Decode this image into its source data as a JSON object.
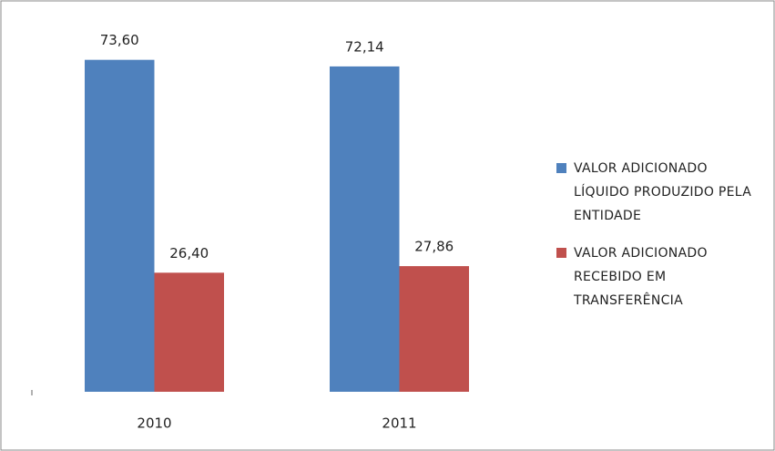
{
  "chart_data": {
    "type": "bar",
    "categories": [
      "2010",
      "2011"
    ],
    "series": [
      {
        "name": "VALOR ADICIONADO LÍQUIDO PRODUZIDO PELA ENTIDADE",
        "color": "#4f81bd",
        "values": [
          73.6,
          72.14
        ],
        "value_labels": [
          "73,60",
          "72,14"
        ]
      },
      {
        "name": "VALOR ADICIONADO RECEBIDO EM TRANSFERÊNCIA",
        "color": "#c0504d",
        "values": [
          26.4,
          27.86
        ],
        "value_labels": [
          "26,40",
          "27,86"
        ]
      }
    ]
  }
}
